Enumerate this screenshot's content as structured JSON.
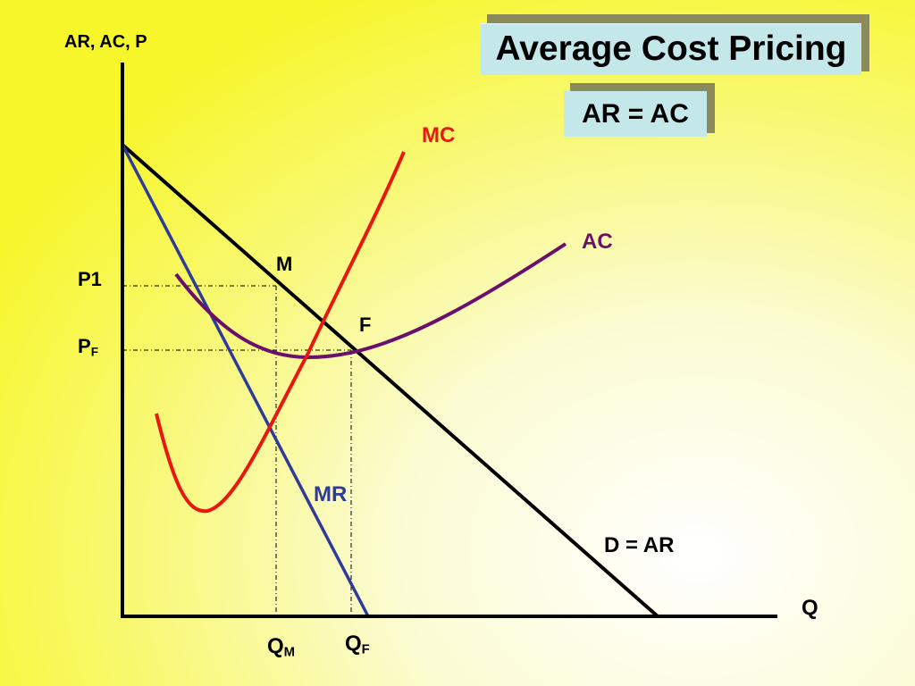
{
  "title": "Average Cost Pricing",
  "subtitle": "AR = AC",
  "axes": {
    "y_label": "AR, AC, P",
    "x_label": "Q"
  },
  "curves": {
    "mc": {
      "label": "MC",
      "color": "#e8180f"
    },
    "ac": {
      "label": "AC",
      "color": "#6a0f6c"
    },
    "mr": {
      "label": "MR",
      "color": "#2f3a9a"
    },
    "demand": {
      "label": "D = AR",
      "color": "#000000"
    }
  },
  "points": {
    "m": "M",
    "f": "F"
  },
  "price_labels": {
    "p1": "P1",
    "pf_main": "P",
    "pf_sub": "F"
  },
  "quantity_labels": {
    "qm_main": "Q",
    "qm_sub": "M",
    "qf_main": "Q",
    "qf_sub": "F"
  }
}
